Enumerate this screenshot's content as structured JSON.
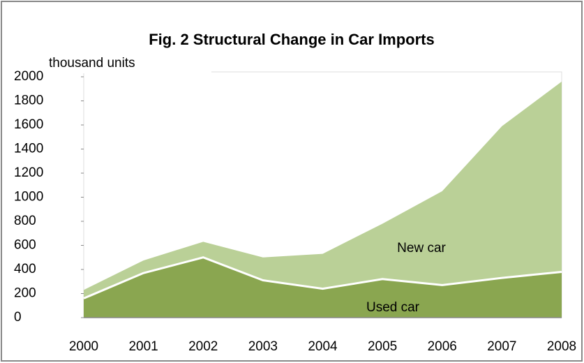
{
  "chart_data": {
    "type": "area",
    "stacked": true,
    "title": "Fig. 2  Structural Change in Car Imports",
    "y_label": "thousand units",
    "categories": [
      "2000",
      "2001",
      "2002",
      "2003",
      "2004",
      "2005",
      "2006",
      "2007",
      "2008"
    ],
    "series": [
      {
        "name": "Used car",
        "color": "#8aa650",
        "values": [
          160,
          370,
          500,
          310,
          240,
          320,
          270,
          330,
          380
        ]
      },
      {
        "name": "New car",
        "color": "#bad097",
        "values": [
          70,
          105,
          130,
          190,
          290,
          460,
          780,
          1260,
          1580
        ]
      }
    ],
    "ylim": [
      0,
      2000
    ],
    "yticks": [
      0,
      200,
      400,
      600,
      800,
      1000,
      1200,
      1400,
      1600,
      1800,
      2000
    ]
  }
}
